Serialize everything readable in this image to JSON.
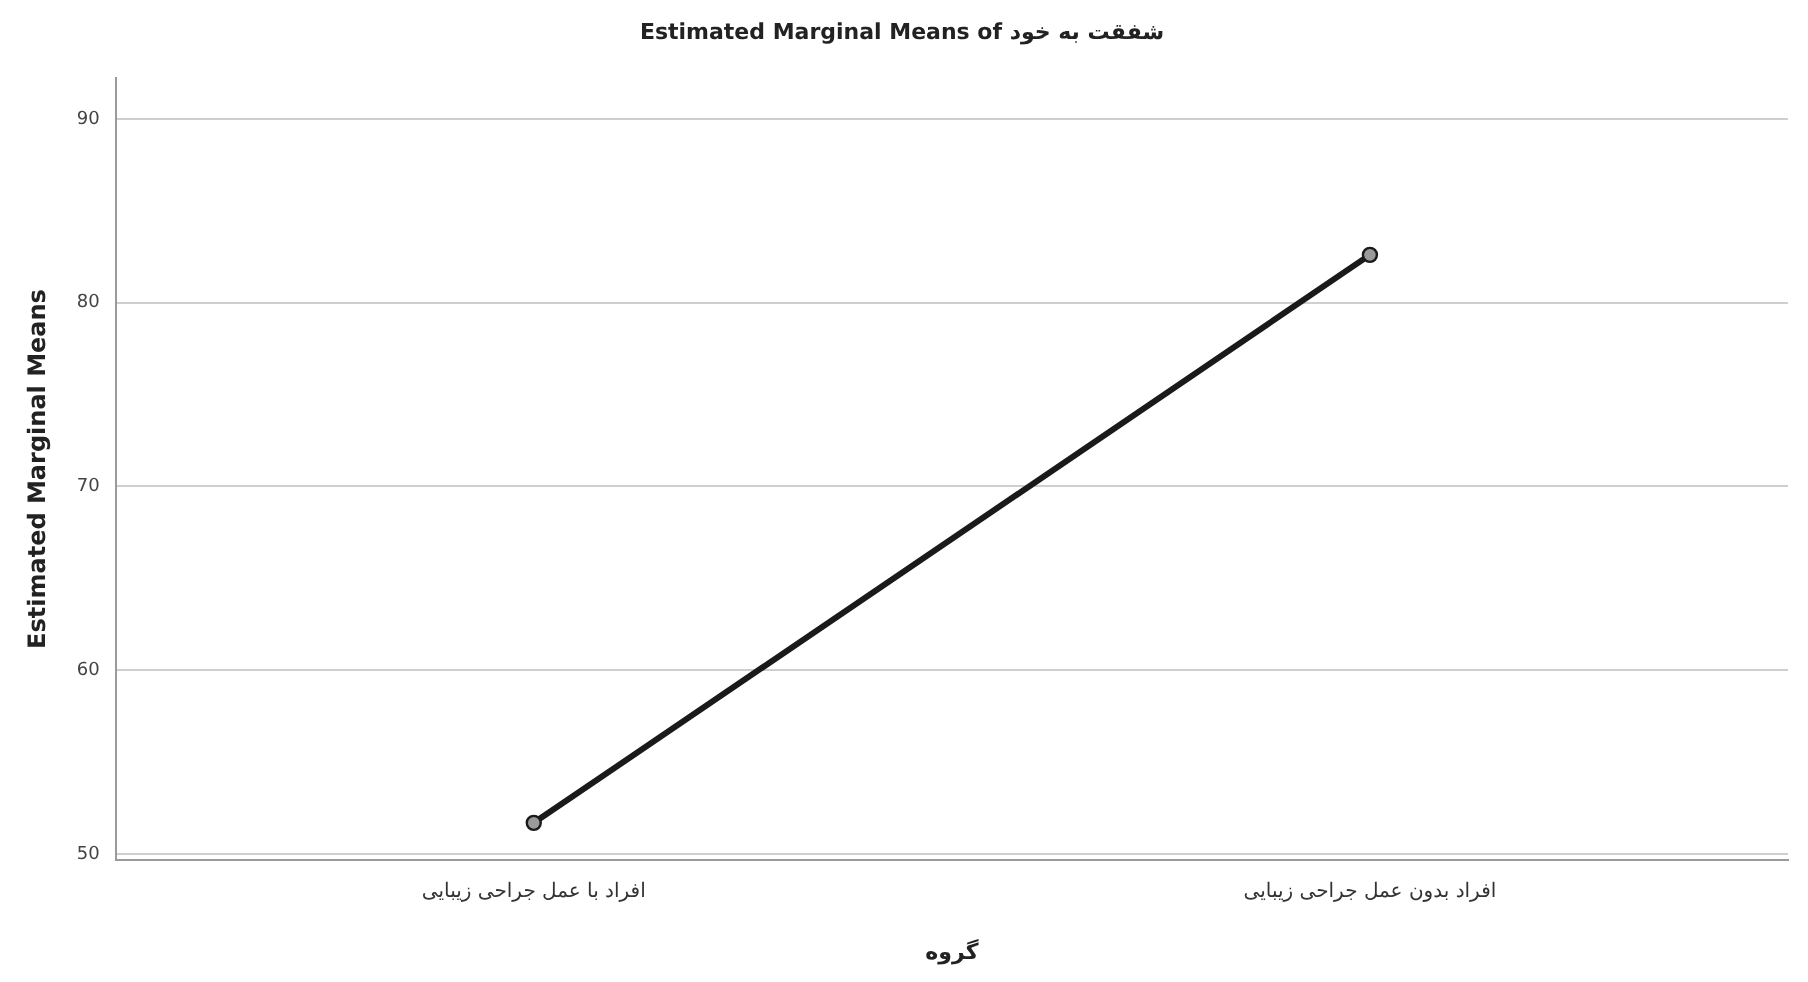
{
  "chart_data": {
    "type": "line",
    "title": "Estimated Marginal Means of شفقت به خود",
    "xlabel": "گروه",
    "ylabel": "Estimated Marginal Means",
    "categories": [
      "افراد با عمل جراحی زیبایی",
      "افراد بدون عمل جراحی زیبایی"
    ],
    "series": [
      {
        "color": "#1a1a1a",
        "values": [
          51.7,
          82.6
        ]
      }
    ],
    "ylim": [
      49.7,
      92.2
    ],
    "yticks": [
      50,
      60,
      70,
      80,
      90
    ],
    "grid": "y",
    "legend": false,
    "marker": "circle",
    "line_style": "solid"
  }
}
